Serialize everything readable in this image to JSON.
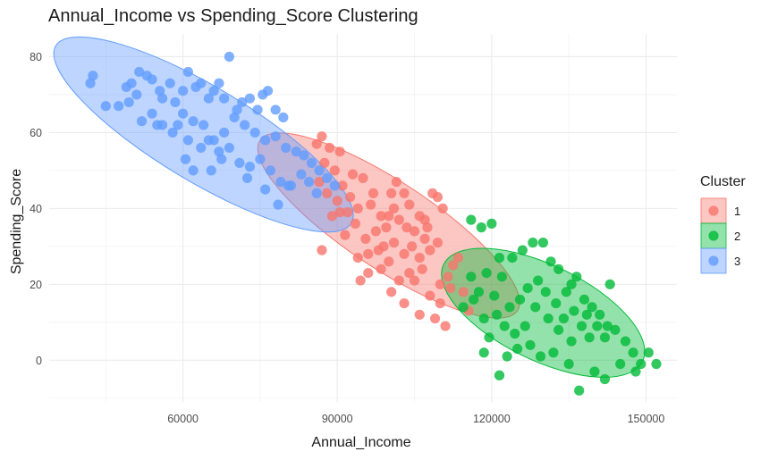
{
  "chart_data": {
    "type": "scatter",
    "title": "Annual_Income vs Spending_Score Clustering",
    "xlabel": "Annual_Income",
    "ylabel": "Spending_Score",
    "xlim": [
      34000,
      156000
    ],
    "ylim": [
      -11,
      86
    ],
    "x_ticks": [
      60000,
      90000,
      120000,
      150000
    ],
    "y_ticks": [
      0,
      20,
      40,
      60,
      80
    ],
    "grid": true,
    "legend_title": "Cluster",
    "legend_position": "right",
    "series": [
      {
        "name": "1",
        "color": "#F8766D",
        "ellipse": {
          "cx": 100000,
          "cy": 35.5,
          "rx": 30000,
          "ry": 11.5,
          "angle_deg": 33.5
        },
        "points": [
          [
            86000,
            57
          ],
          [
            87000,
            59
          ],
          [
            88500,
            56
          ],
          [
            90500,
            55
          ],
          [
            87500,
            52
          ],
          [
            89500,
            50
          ],
          [
            93000,
            49
          ],
          [
            95000,
            48
          ],
          [
            97000,
            44
          ],
          [
            91000,
            46
          ],
          [
            86500,
            47
          ],
          [
            88000,
            44
          ],
          [
            90000,
            42
          ],
          [
            92500,
            43
          ],
          [
            94000,
            40
          ],
          [
            96500,
            41
          ],
          [
            98500,
            38
          ],
          [
            100500,
            44
          ],
          [
            101500,
            47
          ],
          [
            103000,
            44
          ],
          [
            104000,
            41
          ],
          [
            102000,
            37
          ],
          [
            99500,
            35
          ],
          [
            97500,
            34
          ],
          [
            95500,
            32
          ],
          [
            93500,
            36
          ],
          [
            92000,
            39
          ],
          [
            90500,
            39
          ],
          [
            89000,
            38
          ],
          [
            96000,
            28
          ],
          [
            98000,
            29
          ],
          [
            101000,
            31
          ],
          [
            103000,
            28
          ],
          [
            105000,
            34
          ],
          [
            107000,
            37
          ],
          [
            108500,
            44
          ],
          [
            109500,
            43
          ],
          [
            110500,
            40
          ],
          [
            107000,
            32
          ],
          [
            106000,
            27
          ],
          [
            104000,
            23
          ],
          [
            102000,
            21
          ],
          [
            100000,
            26
          ],
          [
            98500,
            24
          ],
          [
            96000,
            23
          ],
          [
            94500,
            21
          ],
          [
            100500,
            18
          ],
          [
            103000,
            15
          ],
          [
            106000,
            12
          ],
          [
            108000,
            17
          ],
          [
            110000,
            20
          ],
          [
            111500,
            22
          ],
          [
            112500,
            25
          ],
          [
            113500,
            27
          ],
          [
            112000,
            19
          ],
          [
            110000,
            15
          ],
          [
            109000,
            11
          ],
          [
            111000,
            9
          ],
          [
            114500,
            18
          ],
          [
            115500,
            13
          ],
          [
            87000,
            29
          ],
          [
            91500,
            33
          ],
          [
            94000,
            27
          ],
          [
            99000,
            30
          ],
          [
            104500,
            30
          ],
          [
            106000,
            38
          ],
          [
            103500,
            35
          ],
          [
            108000,
            29
          ],
          [
            109500,
            31
          ],
          [
            106500,
            24
          ],
          [
            101000,
            40
          ],
          [
            100000,
            38
          ],
          [
            107500,
            35
          ],
          [
            105000,
            21
          ]
        ]
      },
      {
        "name": "2",
        "color": "#00BA38",
        "ellipse": {
          "cx": 130000,
          "cy": 12.5,
          "rx": 21500,
          "ry": 12.5,
          "angle_deg": 26
        },
        "points": [
          [
            116000,
            37
          ],
          [
            118000,
            35
          ],
          [
            120000,
            36
          ],
          [
            121500,
            27
          ],
          [
            119000,
            23
          ],
          [
            117500,
            18
          ],
          [
            116000,
            22
          ],
          [
            114500,
            14
          ],
          [
            118500,
            11
          ],
          [
            120500,
            17
          ],
          [
            122000,
            22
          ],
          [
            124000,
            27
          ],
          [
            126000,
            29
          ],
          [
            128000,
            31
          ],
          [
            130000,
            31
          ],
          [
            131500,
            26
          ],
          [
            133000,
            24
          ],
          [
            134500,
            18
          ],
          [
            135500,
            20
          ],
          [
            136500,
            22
          ],
          [
            138000,
            16
          ],
          [
            139500,
            14
          ],
          [
            141000,
            12
          ],
          [
            142500,
            9
          ],
          [
            144000,
            8
          ],
          [
            146000,
            5
          ],
          [
            147500,
            2
          ],
          [
            149000,
            -1
          ],
          [
            150500,
            2
          ],
          [
            152000,
            -1
          ],
          [
            148000,
            -3
          ],
          [
            145000,
            -1
          ],
          [
            142000,
            -5
          ],
          [
            140000,
            -3
          ],
          [
            137000,
            -8
          ],
          [
            135000,
            -1
          ],
          [
            132000,
            2
          ],
          [
            129500,
            1
          ],
          [
            127500,
            4
          ],
          [
            125000,
            3
          ],
          [
            123000,
            1
          ],
          [
            121500,
            -4
          ],
          [
            119500,
            6
          ],
          [
            121000,
            12
          ],
          [
            123500,
            14
          ],
          [
            125500,
            16
          ],
          [
            127000,
            19
          ],
          [
            129000,
            21
          ],
          [
            130500,
            18
          ],
          [
            132500,
            15
          ],
          [
            134000,
            11
          ],
          [
            136000,
            13
          ],
          [
            137500,
            9
          ],
          [
            139000,
            6
          ],
          [
            133000,
            8
          ],
          [
            131000,
            11
          ],
          [
            128500,
            14
          ],
          [
            126500,
            9
          ],
          [
            124500,
            7
          ],
          [
            122500,
            9
          ],
          [
            118500,
            2
          ],
          [
            116500,
            16
          ],
          [
            138500,
            12
          ],
          [
            140500,
            9
          ],
          [
            142000,
            6
          ],
          [
            135500,
            5
          ],
          [
            143000,
            20
          ]
        ]
      },
      {
        "name": "3",
        "color": "#619CFF",
        "ellipse": {
          "cx": 64000,
          "cy": 59.5,
          "rx": 33500,
          "ry": 12.5,
          "angle_deg": 31
        },
        "points": [
          [
            42000,
            73
          ],
          [
            42500,
            75
          ],
          [
            45000,
            67
          ],
          [
            49000,
            72
          ],
          [
            50000,
            73
          ],
          [
            51000,
            70
          ],
          [
            51500,
            76
          ],
          [
            53000,
            75
          ],
          [
            54000,
            74
          ],
          [
            55500,
            71
          ],
          [
            56000,
            69
          ],
          [
            57500,
            73
          ],
          [
            58500,
            68
          ],
          [
            60000,
            71
          ],
          [
            61000,
            76
          ],
          [
            62500,
            72
          ],
          [
            63500,
            73
          ],
          [
            65000,
            69
          ],
          [
            66000,
            71
          ],
          [
            67000,
            73
          ],
          [
            68000,
            69
          ],
          [
            69000,
            80
          ],
          [
            70500,
            66
          ],
          [
            71500,
            68
          ],
          [
            73000,
            69
          ],
          [
            74500,
            66
          ],
          [
            75500,
            70
          ],
          [
            76500,
            71
          ],
          [
            78000,
            66
          ],
          [
            79500,
            64
          ],
          [
            54000,
            65
          ],
          [
            56000,
            62
          ],
          [
            58000,
            60
          ],
          [
            60000,
            65
          ],
          [
            62000,
            63
          ],
          [
            64000,
            62
          ],
          [
            66000,
            58
          ],
          [
            68000,
            60
          ],
          [
            70000,
            64
          ],
          [
            72000,
            62
          ],
          [
            74000,
            60
          ],
          [
            76000,
            58
          ],
          [
            78000,
            59
          ],
          [
            80000,
            56
          ],
          [
            82000,
            55
          ],
          [
            83500,
            54
          ],
          [
            85000,
            52
          ],
          [
            86500,
            50
          ],
          [
            88000,
            48
          ],
          [
            89500,
            46
          ],
          [
            60500,
            53
          ],
          [
            62000,
            50
          ],
          [
            63500,
            56
          ],
          [
            65000,
            58
          ],
          [
            67000,
            55
          ],
          [
            69000,
            56
          ],
          [
            71000,
            52
          ],
          [
            73000,
            51
          ],
          [
            75000,
            53
          ],
          [
            77000,
            50
          ],
          [
            79000,
            47
          ],
          [
            81000,
            46
          ],
          [
            83000,
            49
          ],
          [
            84500,
            47
          ],
          [
            86000,
            44
          ],
          [
            78500,
            41
          ],
          [
            80500,
            46
          ],
          [
            76000,
            45
          ],
          [
            72500,
            48
          ],
          [
            67500,
            53
          ],
          [
            65500,
            50
          ],
          [
            61000,
            58
          ],
          [
            59000,
            62
          ],
          [
            55000,
            62
          ],
          [
            52000,
            63
          ],
          [
            49500,
            68
          ],
          [
            47500,
            67
          ]
        ]
      }
    ]
  }
}
